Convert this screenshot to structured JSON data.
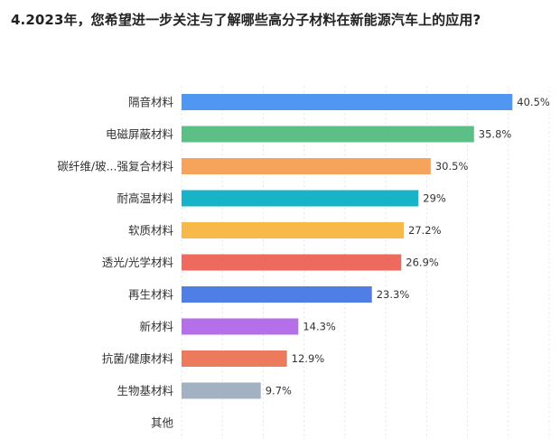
{
  "chart_data": {
    "type": "bar",
    "orientation": "horizontal",
    "title": "4.2023年，您希望进一步关注与了解哪些高分子材料在新能源汽车上的应用?",
    "categories": [
      "隔音材料",
      "电磁屏蔽材料",
      "碳纤维/玻...强复合材料",
      "耐高温材料",
      "软质材料",
      "透光/光学材料",
      "再生材料",
      "新材料",
      "抗菌/健康材料",
      "生物基材料",
      "其他"
    ],
    "values": [
      40.5,
      35.8,
      30.5,
      29,
      27.2,
      26.9,
      23.3,
      14.3,
      12.9,
      9.7,
      null
    ],
    "value_labels": [
      "40.5%",
      "35.8%",
      "30.5%",
      "29%",
      "27.2%",
      "26.9%",
      "23.3%",
      "14.3%",
      "12.9%",
      "9.7%",
      ""
    ],
    "colors": [
      "#4f97f0",
      "#5bbf86",
      "#f6a35b",
      "#17b3c9",
      "#f7b94a",
      "#ef6a5e",
      "#4f7fe6",
      "#b56fe8",
      "#ec7b5d",
      "#a3b2c2",
      "#cccccc"
    ],
    "xlim": [
      0,
      45
    ],
    "grid": true,
    "legend": "none"
  }
}
